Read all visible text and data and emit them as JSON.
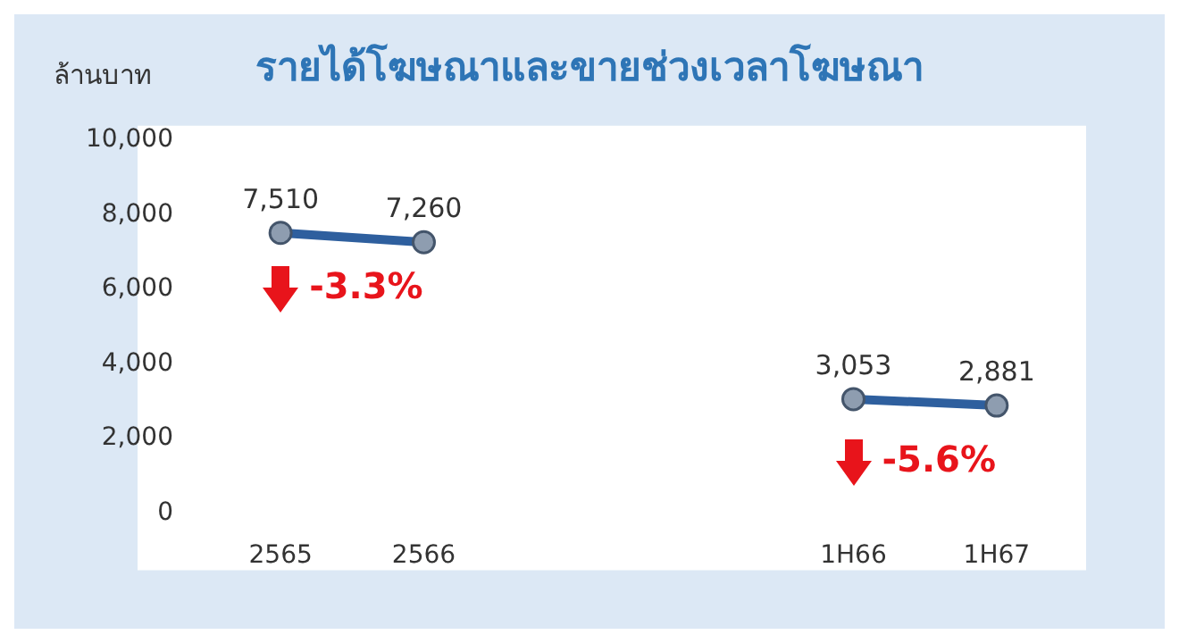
{
  "chart_data": {
    "type": "line",
    "title": "รายได้โฆษณาและขายช่วงเวลาโฆษณา",
    "ylabel": "ล้านบาท",
    "categories": [
      "2565",
      "2566",
      null,
      null,
      "1H66",
      "1H67"
    ],
    "series": [
      {
        "color": "#2e5f9e",
        "values": [
          7510,
          7260,
          null,
          null,
          3053,
          2881
        ],
        "value_labels": [
          "7,510",
          "7,260",
          null,
          null,
          "3,053",
          "2,881"
        ]
      }
    ],
    "ylim": [
      0,
      10000
    ],
    "yticks": [
      0,
      {
        "value": 2000,
        "label": "2,000"
      },
      {
        "value": 4000,
        "label": "4,000"
      },
      {
        "value": 6000,
        "label": "6,000"
      },
      {
        "value": 8000,
        "label": "8,000"
      },
      {
        "value": 10000,
        "label": "10,000"
      }
    ],
    "grid": false,
    "legend": false,
    "marker": "circle",
    "line_style": "solid",
    "annotations": [
      {
        "text": "-3.3%",
        "x": "2565",
        "y": 6000
      },
      {
        "text": "-5.6%",
        "x": "1H66",
        "y": 1350
      }
    ]
  }
}
